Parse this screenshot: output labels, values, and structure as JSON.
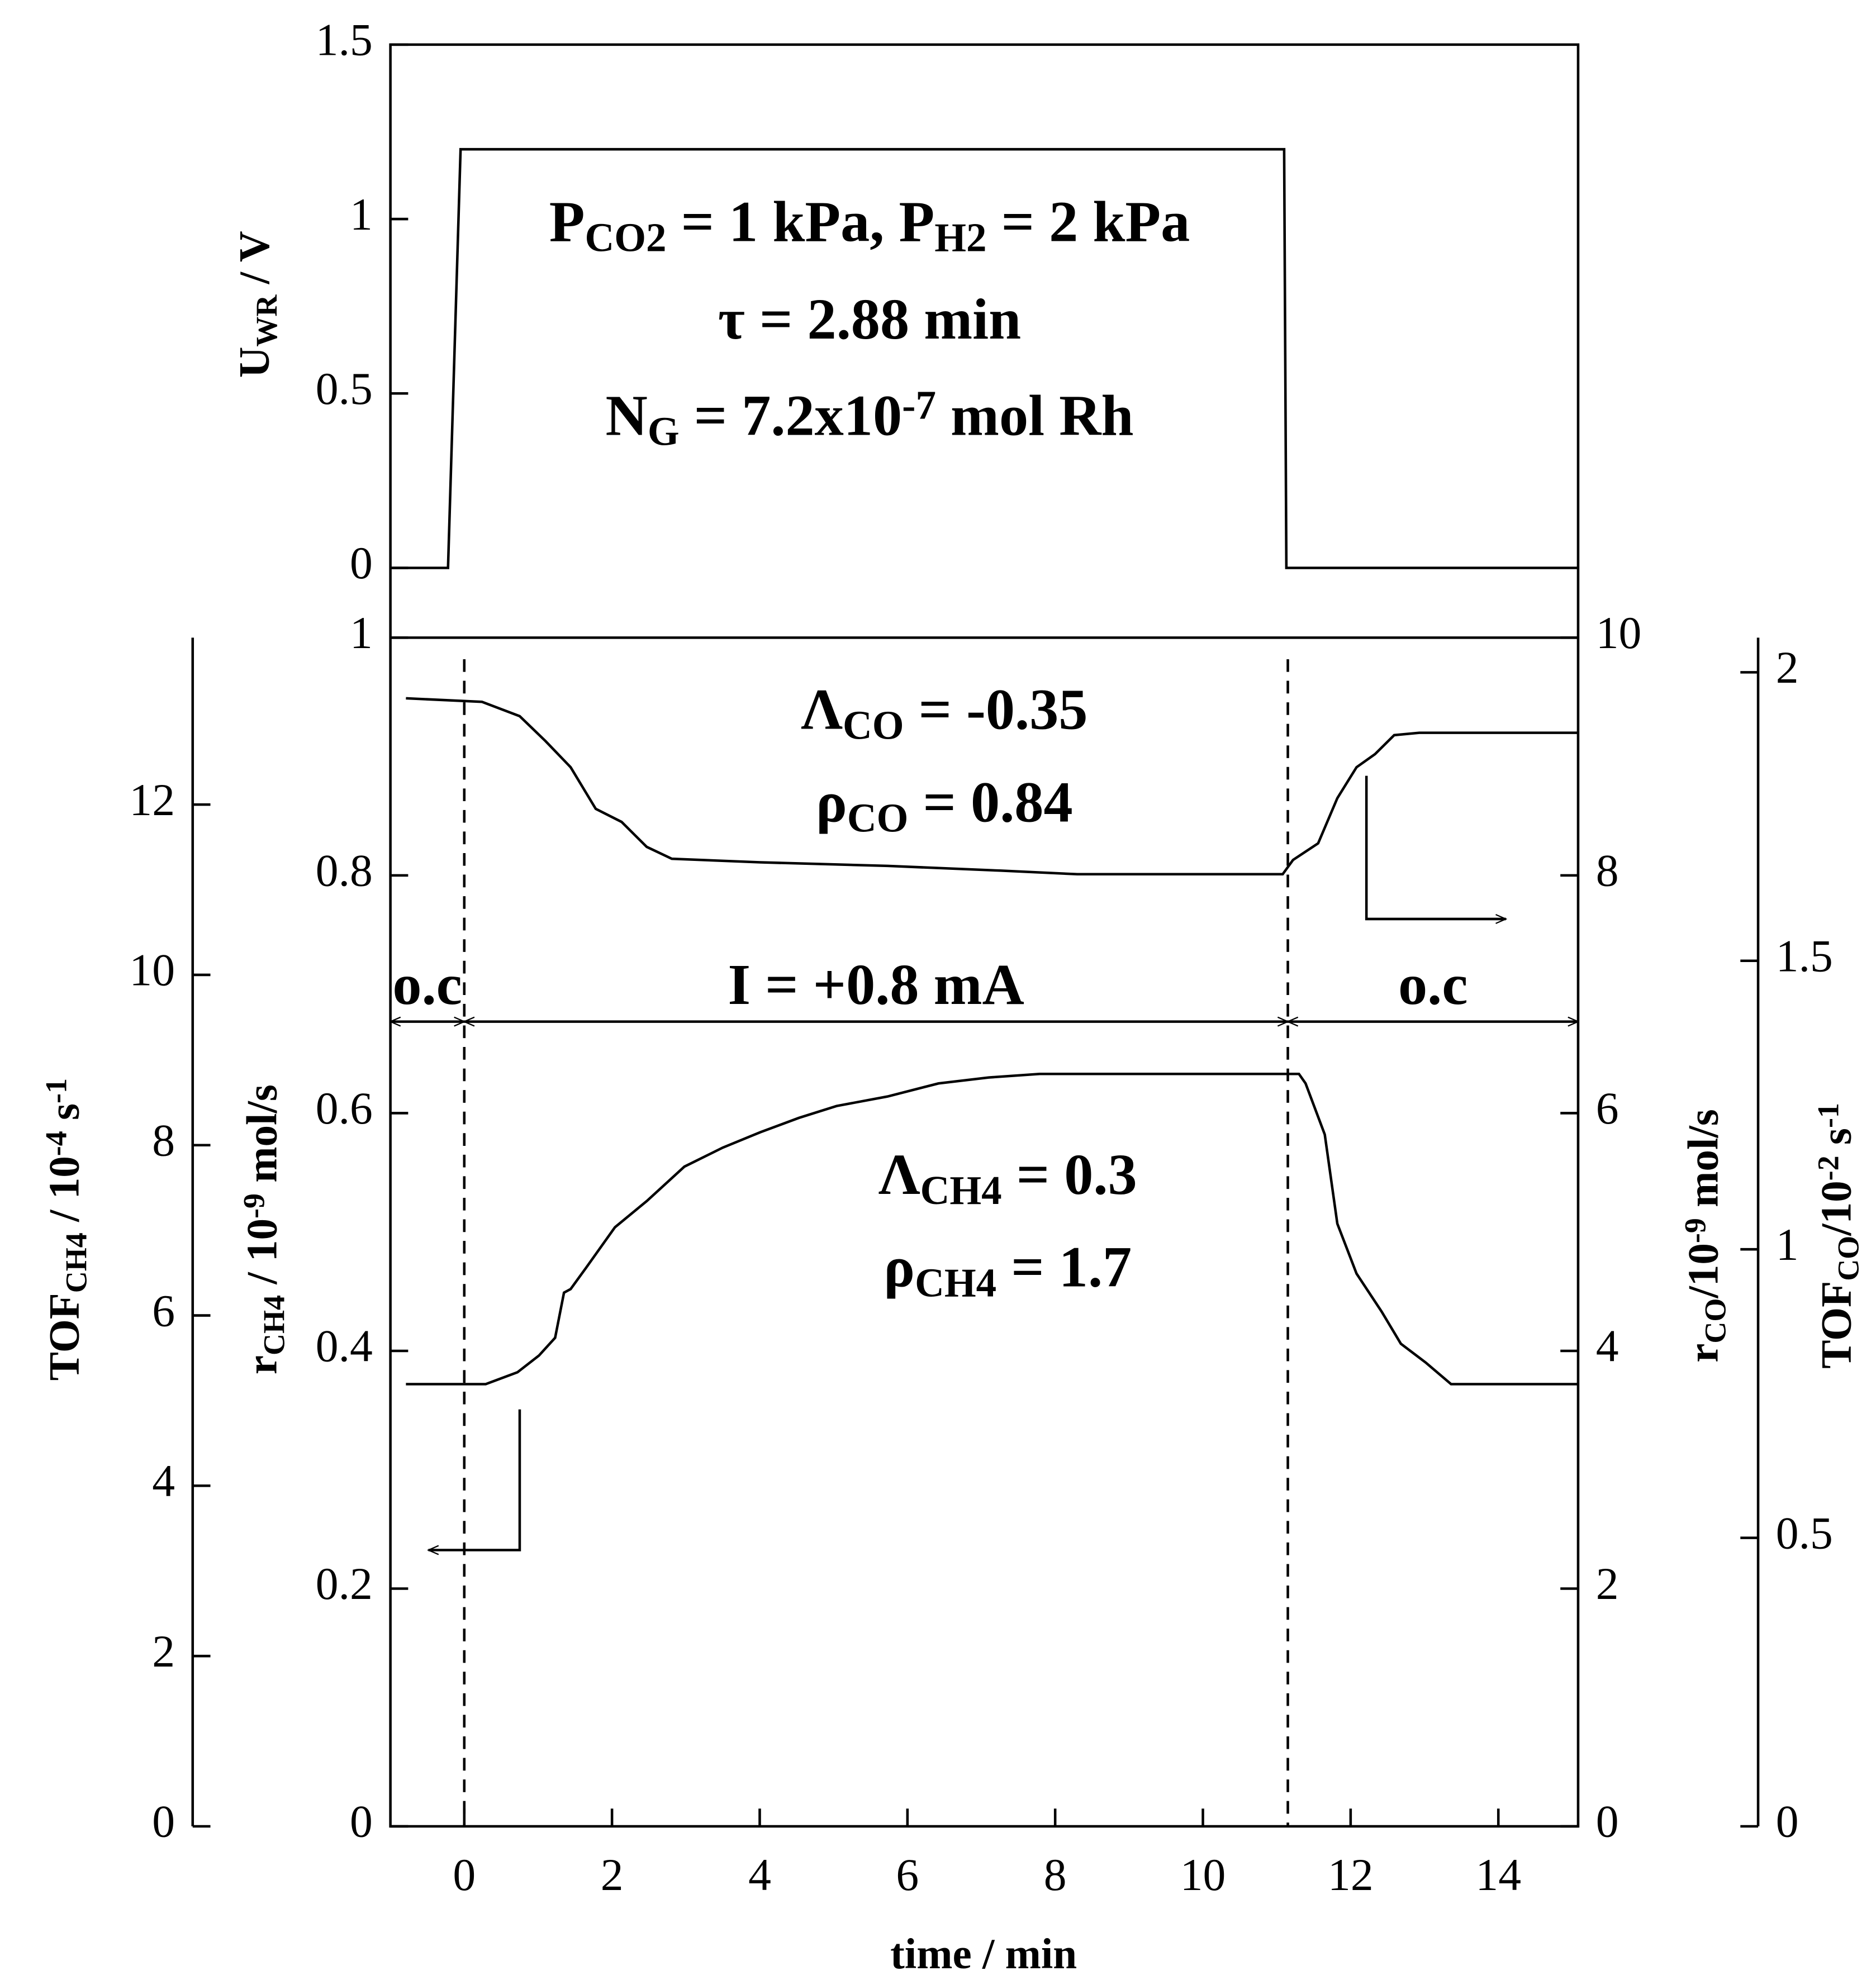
{
  "chart_data": [
    {
      "type": "line",
      "y_label": [
        {
          "t": "U"
        },
        {
          "sub": "WR"
        },
        {
          "t": " / V"
        }
      ],
      "xlim": [
        -1,
        15.08
      ],
      "ylim": [
        -0.2,
        1.5
      ],
      "yticks": [
        0,
        0.5,
        1,
        1.5
      ],
      "series": [
        {
          "color": "#000000",
          "x": [
            -1,
            -0.22,
            -0.05,
            11.1,
            11.13,
            15.08
          ],
          "values": [
            0,
            0,
            1.2,
            1.2,
            0,
            0
          ]
        }
      ],
      "annotations": [
        [
          {
            "t": "P"
          },
          {
            "sub": "CO2"
          },
          {
            "t": " = 1 kPa, P"
          },
          {
            "sub": "H2"
          },
          {
            "t": " = 2 kPa"
          }
        ],
        [
          {
            "t": "τ = 2.88 min"
          }
        ],
        [
          {
            "t": "N"
          },
          {
            "sub": "G"
          },
          {
            "t": " = 7.2x10"
          },
          {
            "sup": "-7"
          },
          {
            "t": " mol Rh"
          }
        ]
      ]
    },
    {
      "type": "line",
      "x_label": "time / min",
      "xlim": [
        -1,
        15.08
      ],
      "xticks": [
        0,
        2,
        4,
        6,
        8,
        10,
        12,
        14
      ],
      "ylim": [
        0,
        1
      ],
      "yticks": [
        0,
        0.2,
        0.4,
        0.6,
        0.8,
        1
      ],
      "y_label": [
        {
          "t": "r"
        },
        {
          "sub": "CH4"
        },
        {
          "t": " / 10"
        },
        {
          "sup": "-9"
        },
        {
          "t": " mol/s"
        }
      ],
      "y2lim": [
        0,
        10
      ],
      "y2ticks": [
        0,
        2,
        4,
        6,
        8,
        10
      ],
      "y2_label": [
        {
          "t": "r"
        },
        {
          "sub": "CO"
        },
        {
          "t": "/10"
        },
        {
          "sup": "-9"
        },
        {
          "t": " mol/s"
        }
      ],
      "tof_ch4_axis": {
        "label": [
          {
            "t": "TOF"
          },
          {
            "sub": "CH4"
          },
          {
            "t": " / 10"
          },
          {
            "sup": "-4"
          },
          {
            "t": " s"
          },
          {
            "sup": "-1"
          }
        ],
        "lim": [
          0,
          13.96
        ],
        "ticks": [
          0,
          2,
          4,
          6,
          8,
          10,
          12
        ]
      },
      "tof_co_axis": {
        "label": [
          {
            "t": "TOF"
          },
          {
            "sub": "CO"
          },
          {
            "t": "/10"
          },
          {
            "sup": "-2"
          },
          {
            "t": " s"
          },
          {
            "sup": "-1"
          }
        ],
        "lim": [
          0,
          2.06
        ],
        "ticks": [
          0,
          0.5,
          1,
          1.5,
          2
        ]
      },
      "series": [
        {
          "color": "#000000",
          "x": [
            -0.79,
            0.29,
            0.72,
            1.01,
            1.23,
            1.35,
            1.44,
            1.65,
            2.04,
            2.47,
            2.98,
            3.5,
            4.01,
            4.53,
            5.04,
            5.73,
            6.42,
            7.1,
            7.79,
            11.3,
            11.39,
            11.65,
            11.82,
            12.08,
            12.42,
            12.68,
            13.02,
            13.36,
            15.08
          ],
          "values": [
            0.372,
            0.372,
            0.382,
            0.396,
            0.411,
            0.449,
            0.452,
            0.47,
            0.504,
            0.526,
            0.555,
            0.571,
            0.584,
            0.596,
            0.606,
            0.614,
            0.625,
            0.63,
            0.633,
            0.633,
            0.625,
            0.582,
            0.507,
            0.465,
            0.433,
            0.406,
            0.39,
            0.372,
            0.372
          ]
        },
        {
          "color": "#000000",
          "axis": "y2",
          "x": [
            -0.79,
            0.24,
            0.75,
            1.1,
            1.44,
            1.78,
            2.13,
            2.47,
            2.81,
            4.01,
            5.73,
            7.27,
            8.3,
            11.08,
            11.22,
            11.56,
            11.82,
            12.08,
            12.33,
            12.59,
            12.93,
            15.08
          ],
          "values": [
            9.49,
            9.46,
            9.34,
            9.13,
            8.91,
            8.56,
            8.45,
            8.24,
            8.14,
            8.11,
            8.08,
            8.04,
            8.01,
            8.01,
            8.13,
            8.27,
            8.65,
            8.91,
            9.02,
            9.18,
            9.2,
            9.2
          ]
        }
      ],
      "vlines": [
        0,
        11.15
      ],
      "span_level": 0.677,
      "spans": [
        {
          "from": -1,
          "to": 0,
          "label": "o.c"
        },
        {
          "from": 0,
          "to": 11.15,
          "label": "I = +0.8 mA"
        },
        {
          "from": 11.15,
          "to": 15.08,
          "label": "o.c"
        }
      ],
      "annotations": [
        [
          {
            "t": "Λ"
          },
          {
            "sub": "CO"
          },
          {
            "t": " = -0.35"
          }
        ],
        [
          {
            "t": "ρ"
          },
          {
            "sub": "CO"
          },
          {
            "t": " = 0.84"
          }
        ],
        [
          {
            "t": "Λ"
          },
          {
            "sub": "CH4"
          },
          {
            "t": " = 0.3"
          }
        ],
        [
          {
            "t": "ρ"
          },
          {
            "sub": "CH4"
          },
          {
            "t": " = 1.7"
          }
        ]
      ]
    }
  ]
}
